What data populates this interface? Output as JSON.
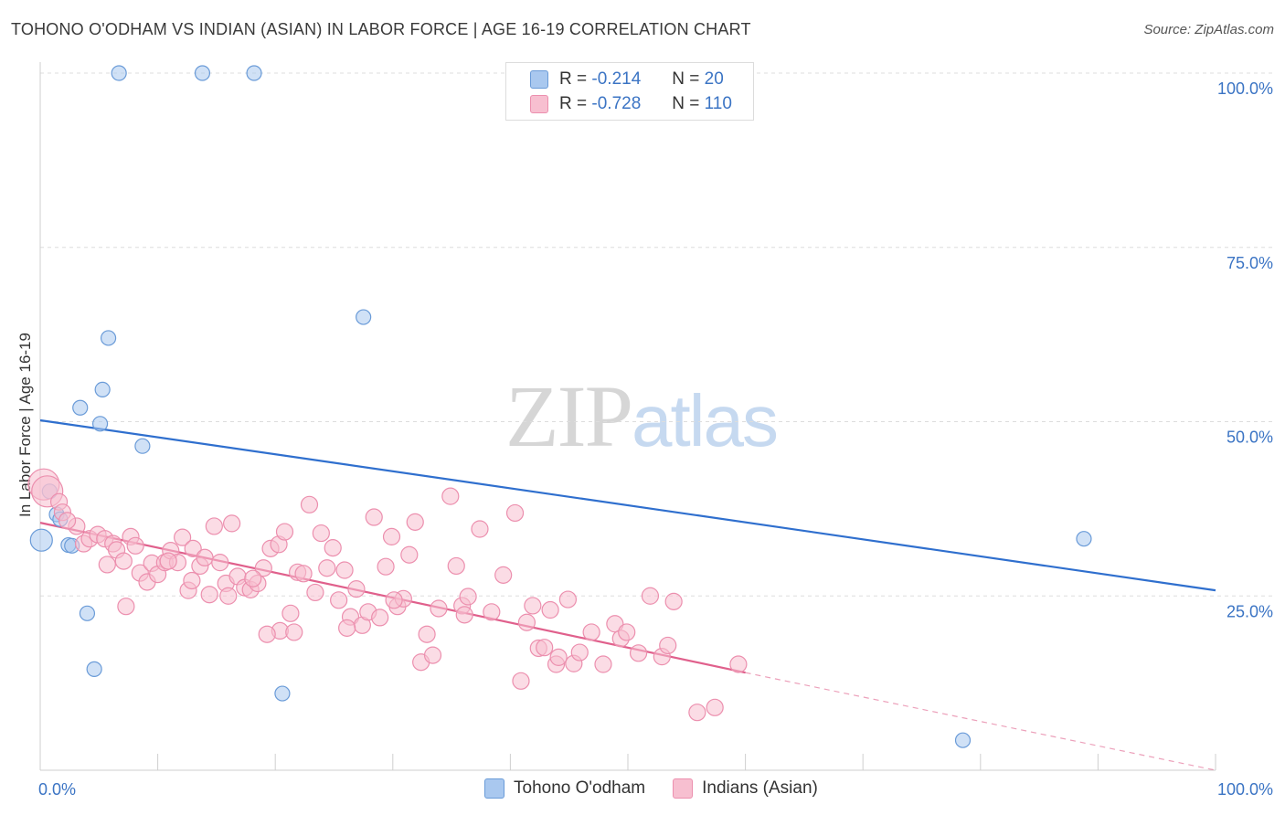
{
  "header": {
    "title": "TOHONO O'ODHAM VS INDIAN (ASIAN) IN LABOR FORCE | AGE 16-19 CORRELATION CHART",
    "source": "Source: ZipAtlas.com"
  },
  "watermark": {
    "zip": "ZIP",
    "atlas": "atlas"
  },
  "legend": {
    "rows": [
      {
        "r_label": "R =",
        "r_value": "-0.214",
        "n_label": "N =",
        "n_value": "20",
        "color": "#a9c8ef",
        "border": "#6a9bd8"
      },
      {
        "r_label": "R =",
        "r_value": "-0.728",
        "n_label": "N =",
        "n_value": "110",
        "color": "#f7bfd0",
        "border": "#ec8fae"
      }
    ],
    "bottom": [
      {
        "label": "Tohono O'odham",
        "color": "#a9c8ef",
        "border": "#6a9bd8"
      },
      {
        "label": "Indians (Asian)",
        "color": "#f7bfd0",
        "border": "#ec8fae"
      }
    ]
  },
  "chart_data": {
    "type": "scatter",
    "title": "TOHONO O'ODHAM VS INDIAN (ASIAN) IN LABOR FORCE | AGE 16-19 CORRELATION CHART",
    "xlabel": "",
    "ylabel": "In Labor Force | Age 16-19",
    "xlim": [
      0,
      100
    ],
    "ylim": [
      0,
      100
    ],
    "x_tick_labels": [
      "0.0%",
      "100.0%"
    ],
    "y_ticks": [
      25,
      50,
      75,
      100
    ],
    "y_tick_labels": [
      "25.0%",
      "50.0%",
      "75.0%",
      "100.0%"
    ],
    "grid": true,
    "series": [
      {
        "name": "Tohono O'odham",
        "color": "#a9c8ef",
        "edge": "#6a9bd8",
        "line_color": "#2f6fce",
        "R": -0.214,
        "N": 20,
        "trend": {
          "x0": 0,
          "y0": 50.2,
          "x1": 100,
          "y1": 25.8
        },
        "points": [
          [
            6.7,
            100
          ],
          [
            13.8,
            100
          ],
          [
            18.2,
            100
          ],
          [
            27.5,
            65.0
          ],
          [
            5.8,
            62.0
          ],
          [
            5.3,
            54.6
          ],
          [
            3.4,
            52.0
          ],
          [
            5.1,
            49.7
          ],
          [
            8.7,
            46.5
          ],
          [
            0.8,
            40.0
          ],
          [
            1.4,
            36.7
          ],
          [
            1.7,
            36.0
          ],
          [
            0.1,
            33.0
          ],
          [
            2.4,
            32.3
          ],
          [
            2.7,
            32.2
          ],
          [
            4.0,
            22.5
          ],
          [
            4.6,
            14.5
          ],
          [
            20.6,
            11.0
          ],
          [
            88.8,
            33.2
          ],
          [
            78.5,
            4.3
          ]
        ]
      },
      {
        "name": "Indians (Asian)",
        "color": "#f7bfd0",
        "edge": "#ec8fae",
        "line_color": "#e0608c",
        "R": -0.728,
        "N": 110,
        "trend": {
          "x0": 0,
          "y0": 35.5,
          "x1": 60,
          "y1": 14.0
        },
        "trend_dashed": {
          "x0": 60,
          "y0": 14.0,
          "x1": 100,
          "y1": 0.0
        },
        "points": [
          [
            0.3,
            41.0
          ],
          [
            0.6,
            40.0
          ],
          [
            1.6,
            38.5
          ],
          [
            1.9,
            37.0
          ],
          [
            3.1,
            35.0
          ],
          [
            2.3,
            35.8
          ],
          [
            3.7,
            32.5
          ],
          [
            4.2,
            33.2
          ],
          [
            4.9,
            33.8
          ],
          [
            5.5,
            33.2
          ],
          [
            6.2,
            32.5
          ],
          [
            6.5,
            31.6
          ],
          [
            7.1,
            30.0
          ],
          [
            5.7,
            29.5
          ],
          [
            7.7,
            33.5
          ],
          [
            8.1,
            32.2
          ],
          [
            8.5,
            28.3
          ],
          [
            9.1,
            27.0
          ],
          [
            9.5,
            29.7
          ],
          [
            10.0,
            28.1
          ],
          [
            10.6,
            29.8
          ],
          [
            11.1,
            31.5
          ],
          [
            11.7,
            29.8
          ],
          [
            12.1,
            33.4
          ],
          [
            12.6,
            25.8
          ],
          [
            13.0,
            31.8
          ],
          [
            13.6,
            29.3
          ],
          [
            14.0,
            30.5
          ],
          [
            14.8,
            35.0
          ],
          [
            15.3,
            29.8
          ],
          [
            15.8,
            26.8
          ],
          [
            16.3,
            35.4
          ],
          [
            16.8,
            27.8
          ],
          [
            17.4,
            26.2
          ],
          [
            17.9,
            25.9
          ],
          [
            18.5,
            26.8
          ],
          [
            19.0,
            29.0
          ],
          [
            19.6,
            31.8
          ],
          [
            20.3,
            32.4
          ],
          [
            20.8,
            34.2
          ],
          [
            21.3,
            22.5
          ],
          [
            21.9,
            28.4
          ],
          [
            22.4,
            28.2
          ],
          [
            22.9,
            38.1
          ],
          [
            23.4,
            25.5
          ],
          [
            23.9,
            34.0
          ],
          [
            24.4,
            29.0
          ],
          [
            24.9,
            31.9
          ],
          [
            25.4,
            24.4
          ],
          [
            25.9,
            28.7
          ],
          [
            26.4,
            22.0
          ],
          [
            26.9,
            26.0
          ],
          [
            27.4,
            20.8
          ],
          [
            27.9,
            22.7
          ],
          [
            28.4,
            36.3
          ],
          [
            28.9,
            21.9
          ],
          [
            29.4,
            29.2
          ],
          [
            29.9,
            33.5
          ],
          [
            30.4,
            23.5
          ],
          [
            30.9,
            24.6
          ],
          [
            31.4,
            30.9
          ],
          [
            31.9,
            35.6
          ],
          [
            32.4,
            15.5
          ],
          [
            32.9,
            19.5
          ],
          [
            33.4,
            16.5
          ],
          [
            33.9,
            23.2
          ],
          [
            34.9,
            39.3
          ],
          [
            35.4,
            29.3
          ],
          [
            35.9,
            23.6
          ],
          [
            36.4,
            24.9
          ],
          [
            37.4,
            34.6
          ],
          [
            38.4,
            22.7
          ],
          [
            39.4,
            28.0
          ],
          [
            40.4,
            36.9
          ],
          [
            40.9,
            12.8
          ],
          [
            41.4,
            21.2
          ],
          [
            41.9,
            23.6
          ],
          [
            42.4,
            17.5
          ],
          [
            42.9,
            17.6
          ],
          [
            43.4,
            23.0
          ],
          [
            43.9,
            15.2
          ],
          [
            44.9,
            24.5
          ],
          [
            45.4,
            15.3
          ],
          [
            45.9,
            16.9
          ],
          [
            46.9,
            19.8
          ],
          [
            47.9,
            15.2
          ],
          [
            48.9,
            21.0
          ],
          [
            49.4,
            18.9
          ],
          [
            49.9,
            19.8
          ],
          [
            50.9,
            16.8
          ],
          [
            51.9,
            25.0
          ],
          [
            52.9,
            16.3
          ],
          [
            53.4,
            17.9
          ],
          [
            57.4,
            9.0
          ],
          [
            59.4,
            15.2
          ],
          [
            55.9,
            8.3
          ],
          [
            53.9,
            24.2
          ],
          [
            20.4,
            20.0
          ],
          [
            19.3,
            19.5
          ],
          [
            16.0,
            25.0
          ],
          [
            7.3,
            23.5
          ],
          [
            10.9,
            30.0
          ],
          [
            14.4,
            25.2
          ],
          [
            18.1,
            27.5
          ],
          [
            21.6,
            19.8
          ],
          [
            26.1,
            20.4
          ],
          [
            30.1,
            24.4
          ],
          [
            36.1,
            22.3
          ],
          [
            44.1,
            16.2
          ],
          [
            12.9,
            27.2
          ]
        ]
      }
    ]
  }
}
